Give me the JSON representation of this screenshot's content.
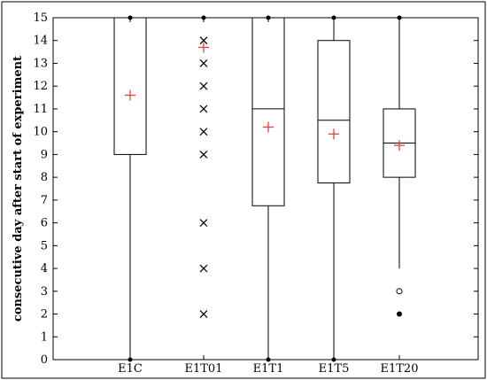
{
  "chart_data": {
    "type": "boxplot",
    "title": "",
    "xlabel": "",
    "ylabel": "consecutive day after start of experiment",
    "ylim": [
      0,
      15
    ],
    "yticks": [
      0,
      1,
      2,
      3,
      4,
      5,
      6,
      7,
      8,
      9,
      10,
      11,
      12,
      13,
      14,
      15
    ],
    "categories": [
      "E1C",
      "E1T01",
      "E1T1",
      "E1T5",
      "E1T20"
    ],
    "series": [
      {
        "category": "E1C",
        "whisker_low": 0,
        "q1": 9,
        "median": 15,
        "q3": 15,
        "whisker_high": 15,
        "mean": 11.6,
        "outliers": []
      },
      {
        "category": "E1T01",
        "whisker_low": 15,
        "q1": 15,
        "median": 15,
        "q3": 15,
        "whisker_high": 15,
        "mean": 13.7,
        "outliers": [
          14,
          13,
          12,
          11,
          10,
          9,
          6,
          4,
          2
        ]
      },
      {
        "category": "E1T1",
        "whisker_low": 0,
        "q1": 6.75,
        "median": 11,
        "q3": 15,
        "whisker_high": 15,
        "mean": 10.2,
        "outliers": []
      },
      {
        "category": "E1T5",
        "whisker_low": 0,
        "q1": 7.75,
        "median": 10.5,
        "q3": 14,
        "whisker_high": 15,
        "mean": 9.9,
        "outliers": []
      },
      {
        "category": "E1T20",
        "whisker_low": 4,
        "q1": 8,
        "median": 9.5,
        "q3": 11,
        "whisker_high": 15,
        "mean": 9.4,
        "outliers_open": [
          3
        ],
        "outliers_filled": [
          2
        ]
      }
    ],
    "colors": {
      "mean_marker": "#e8413c",
      "box": "#000000"
    },
    "grid": false,
    "legend": "none"
  }
}
